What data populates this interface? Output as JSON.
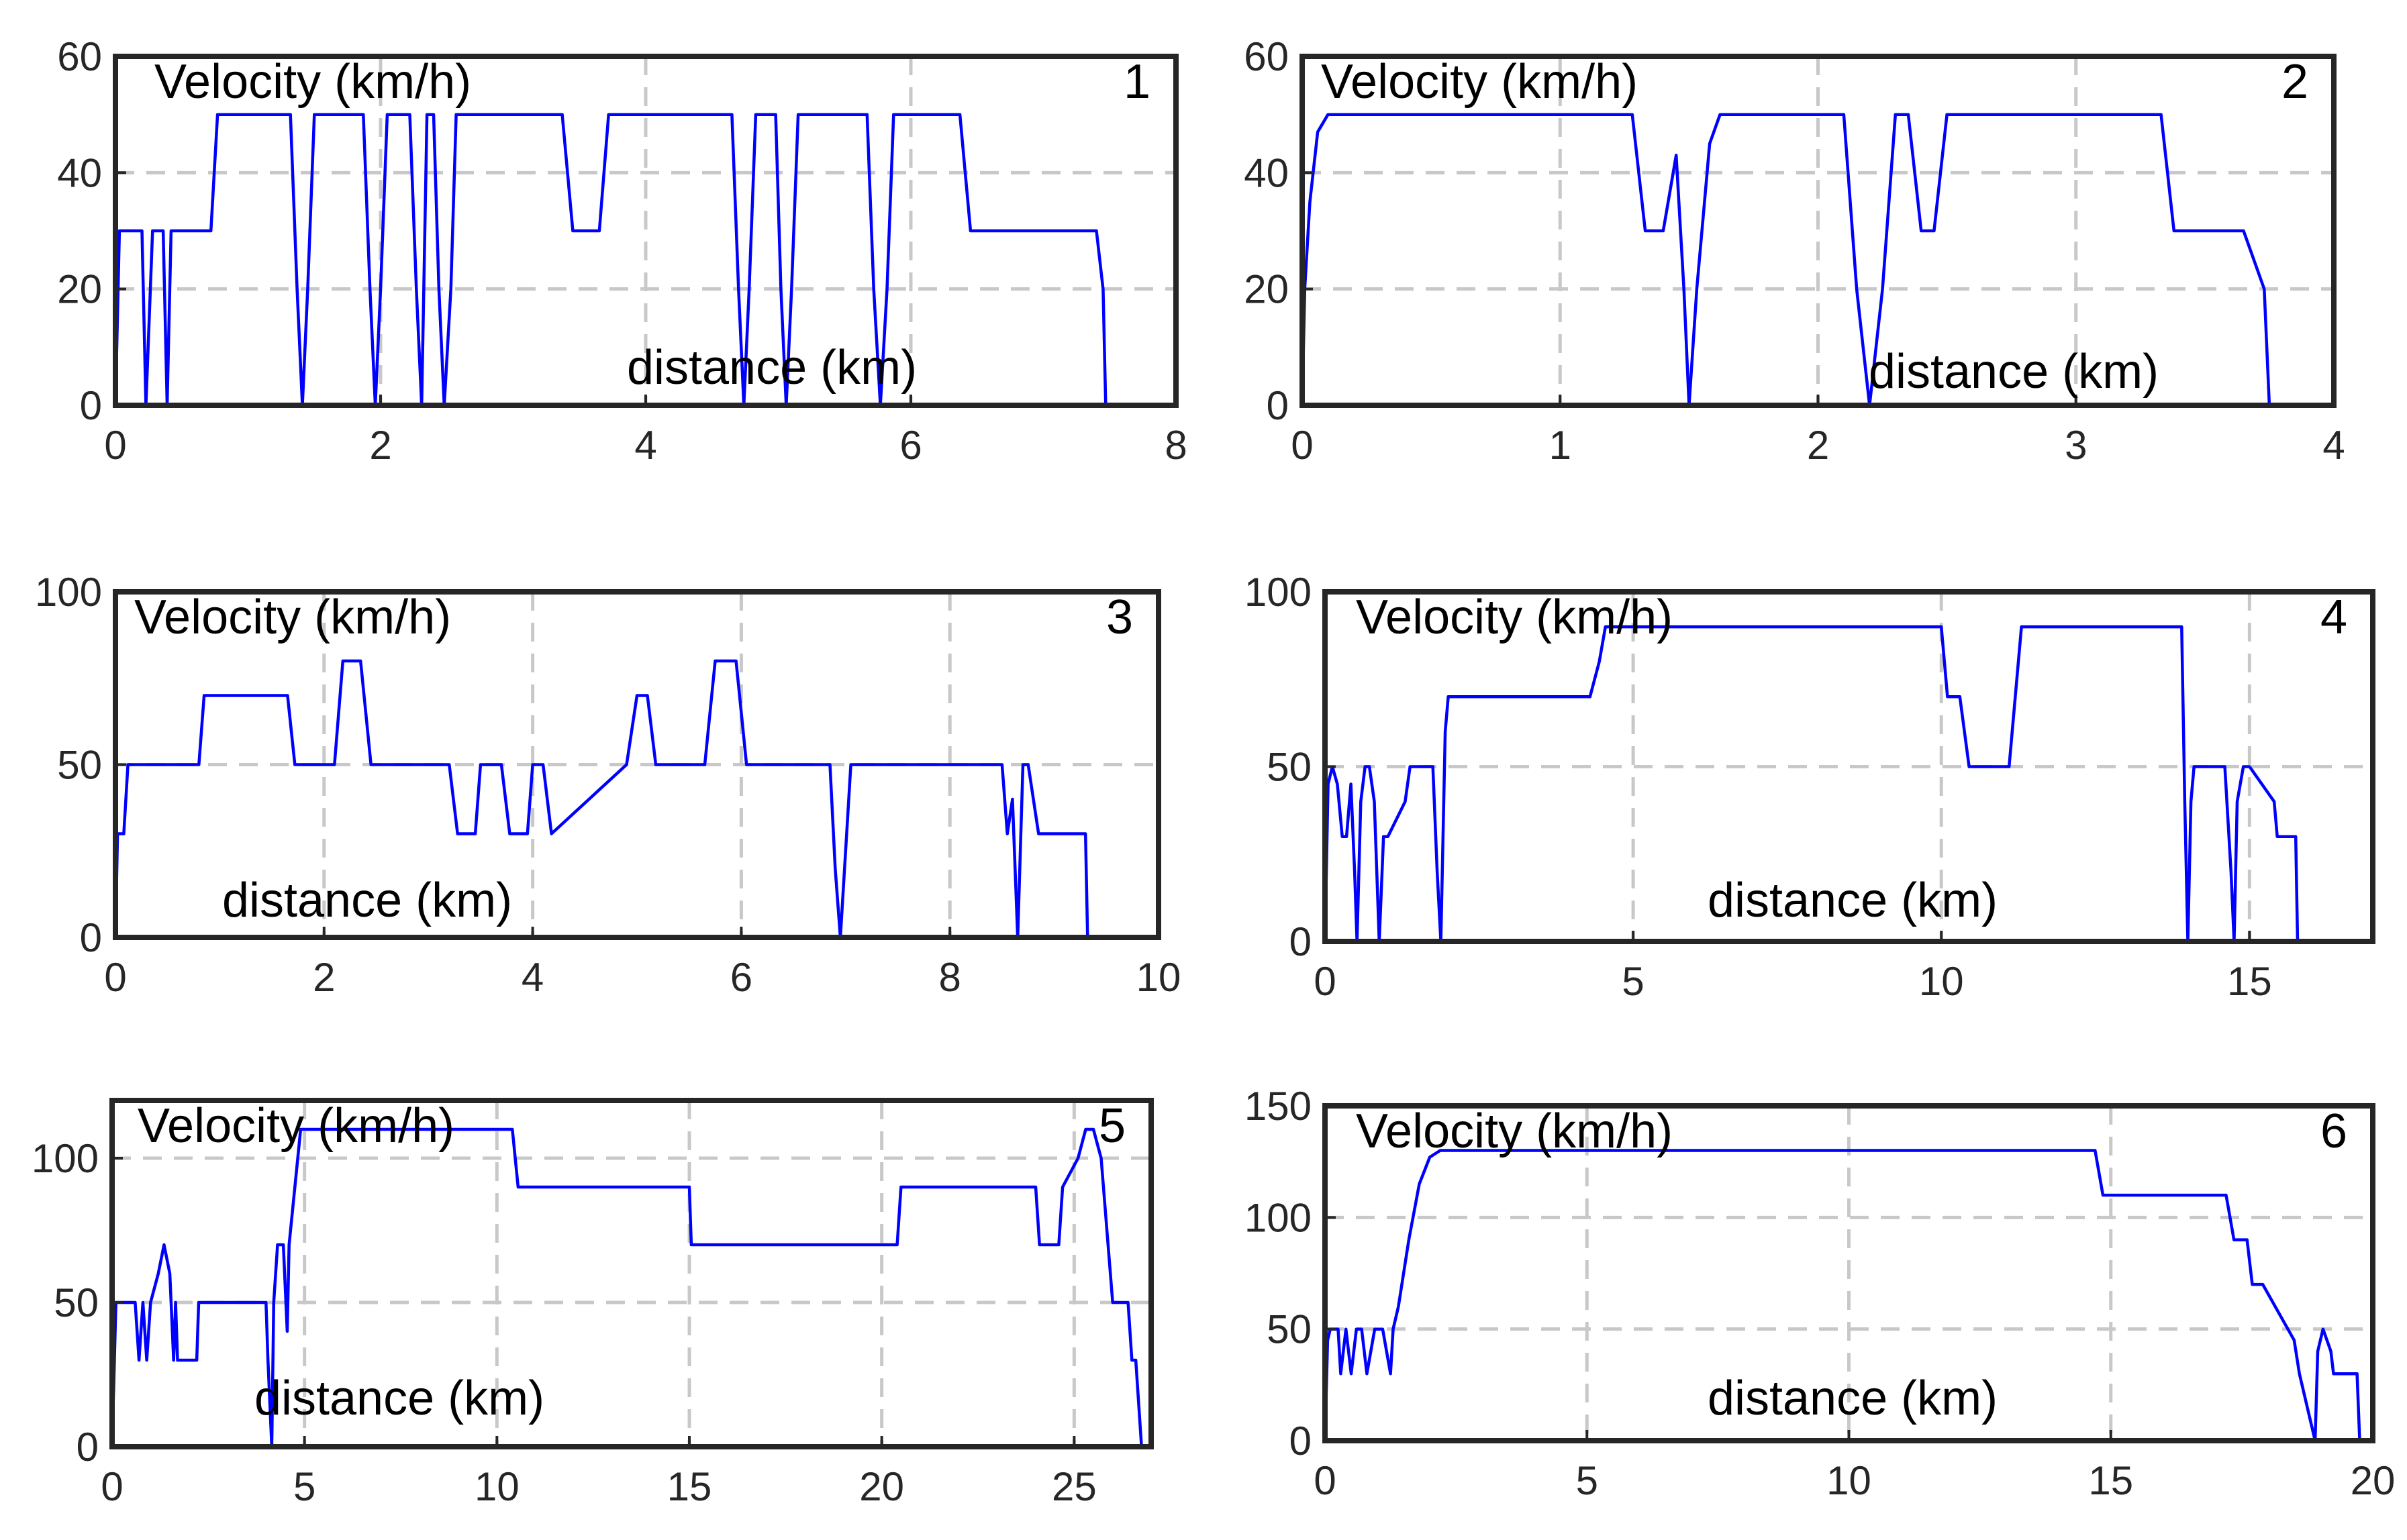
{
  "chart_data": [
    {
      "type": "line",
      "panel_number": "1",
      "ylabel": "Velocity (km/h)",
      "xlabel": "distance (km)",
      "xlim": [
        0,
        8
      ],
      "ylim": [
        0,
        60
      ],
      "xticks": [
        0,
        2,
        4,
        6,
        8
      ],
      "yticks": [
        0,
        20,
        40,
        60
      ],
      "grid": true,
      "series": [
        {
          "name": "velocity",
          "color": "#0000ff",
          "x": [
            0,
            0.03,
            0.2,
            0.23,
            0.28,
            0.36,
            0.39,
            0.42,
            0.72,
            0.77,
            1.32,
            1.37,
            1.41,
            1.45,
            1.5,
            1.87,
            1.92,
            1.96,
            2.0,
            2.05,
            2.22,
            2.27,
            2.31,
            2.35,
            2.4,
            2.44,
            2.48,
            2.53,
            2.57,
            2.62,
            3.37,
            3.45,
            3.65,
            3.72,
            4.65,
            4.7,
            4.74,
            4.78,
            4.83,
            4.98,
            5.02,
            5.06,
            5.1,
            5.15,
            5.67,
            5.72,
            5.77,
            5.82,
            5.87,
            6.37,
            6.45,
            7.4,
            7.45,
            7.47
          ],
          "y": [
            0,
            30,
            30,
            0,
            30,
            30,
            0,
            30,
            30,
            50,
            50,
            20,
            0,
            20,
            50,
            50,
            20,
            0,
            20,
            50,
            50,
            20,
            0,
            50,
            50,
            20,
            0,
            20,
            50,
            50,
            50,
            30,
            30,
            50,
            50,
            20,
            0,
            20,
            50,
            50,
            20,
            0,
            20,
            50,
            50,
            20,
            0,
            20,
            50,
            50,
            30,
            30,
            20,
            0
          ]
        }
      ]
    },
    {
      "type": "line",
      "panel_number": "2",
      "ylabel": "Velocity (km/h)",
      "xlabel": "distance (km)",
      "xlim": [
        0,
        4
      ],
      "ylim": [
        0,
        60
      ],
      "xticks": [
        0,
        1,
        2,
        3,
        4
      ],
      "yticks": [
        0,
        20,
        40,
        60
      ],
      "grid": true,
      "series": [
        {
          "name": "velocity",
          "color": "#0000ff",
          "x": [
            0,
            0.01,
            0.03,
            0.06,
            0.1,
            1.28,
            1.33,
            1.4,
            1.45,
            1.48,
            1.5,
            1.53,
            1.58,
            1.62,
            2.1,
            2.15,
            2.2,
            2.25,
            2.3,
            2.35,
            2.4,
            2.45,
            2.5,
            2.55,
            3.33,
            3.38,
            3.65,
            3.73,
            3.75
          ],
          "y": [
            0,
            20,
            35,
            47,
            50,
            50,
            30,
            30,
            43,
            20,
            0,
            20,
            45,
            50,
            50,
            20,
            0,
            20,
            50,
            50,
            30,
            30,
            50,
            50,
            50,
            30,
            30,
            20,
            0
          ]
        }
      ]
    },
    {
      "type": "line",
      "panel_number": "3",
      "ylabel": "Velocity (km/h)",
      "xlabel": "distance (km)",
      "xlim": [
        0,
        10
      ],
      "ylim": [
        0,
        100
      ],
      "xticks": [
        0,
        2,
        4,
        6,
        8,
        10
      ],
      "yticks": [
        0,
        50,
        100
      ],
      "grid": true,
      "series": [
        {
          "name": "velocity",
          "color": "#0000ff",
          "x": [
            0,
            0.02,
            0.08,
            0.12,
            0.8,
            0.85,
            1.65,
            1.72,
            2.1,
            2.18,
            2.35,
            2.45,
            3.2,
            3.28,
            3.45,
            3.5,
            3.7,
            3.78,
            3.95,
            4.0,
            4.1,
            4.18,
            4.9,
            5.0,
            5.1,
            5.18,
            5.65,
            5.75,
            5.95,
            6.05,
            6.85,
            6.9,
            6.95,
            7.05,
            8.5,
            8.55,
            8.6,
            8.65,
            8.7,
            8.75,
            8.85,
            8.9,
            9.3,
            9.32
          ],
          "y": [
            0,
            30,
            30,
            50,
            50,
            70,
            70,
            50,
            50,
            80,
            80,
            50,
            50,
            30,
            30,
            50,
            50,
            30,
            30,
            50,
            50,
            30,
            50,
            70,
            70,
            50,
            50,
            80,
            80,
            50,
            50,
            20,
            0,
            50,
            50,
            30,
            40,
            0,
            50,
            50,
            30,
            30,
            30,
            0
          ]
        }
      ]
    },
    {
      "type": "line",
      "panel_number": "4",
      "ylabel": "Velocity (km/h)",
      "xlabel": "distance (km)",
      "xlim": [
        0,
        17
      ],
      "ylim": [
        0,
        100
      ],
      "xticks": [
        0,
        5,
        10,
        15
      ],
      "yticks": [
        0,
        50,
        100
      ],
      "grid": true,
      "series": [
        {
          "name": "velocity",
          "color": "#0000ff",
          "x": [
            0,
            0.05,
            0.12,
            0.2,
            0.28,
            0.35,
            0.42,
            0.48,
            0.52,
            0.58,
            0.65,
            0.72,
            0.8,
            0.88,
            0.95,
            1.02,
            1.3,
            1.38,
            1.75,
            1.82,
            1.88,
            1.95,
            2.0,
            4.3,
            4.45,
            4.55,
            10.0,
            10.1,
            10.3,
            10.45,
            11.1,
            11.3,
            13.9,
            13.95,
            14.0,
            14.05,
            14.1,
            14.6,
            14.7,
            14.75,
            14.8,
            14.9,
            15.0,
            15.4,
            15.45,
            15.75,
            15.78
          ],
          "y": [
            0,
            45,
            50,
            45,
            30,
            30,
            45,
            20,
            0,
            40,
            50,
            50,
            40,
            0,
            30,
            30,
            40,
            50,
            50,
            20,
            0,
            60,
            70,
            70,
            80,
            90,
            90,
            70,
            70,
            50,
            50,
            90,
            90,
            40,
            0,
            40,
            50,
            50,
            20,
            0,
            40,
            50,
            50,
            40,
            30,
            30,
            0
          ]
        }
      ]
    },
    {
      "type": "line",
      "panel_number": "5",
      "ylabel": "Velocity (km/h)",
      "xlabel": "distance (km)",
      "xlim": [
        0,
        27
      ],
      "ylim": [
        0,
        120
      ],
      "xticks": [
        0,
        5,
        10,
        15,
        20,
        25
      ],
      "yticks": [
        0,
        50,
        100
      ],
      "grid": true,
      "series": [
        {
          "name": "velocity",
          "color": "#0000ff",
          "x": [
            0,
            0.1,
            0.2,
            0.6,
            0.7,
            0.8,
            0.9,
            1.0,
            1.2,
            1.35,
            1.5,
            1.6,
            1.65,
            1.7,
            2.2,
            2.25,
            4.0,
            4.05,
            4.15,
            4.2,
            4.3,
            4.45,
            4.55,
            4.6,
            4.75,
            4.9,
            5.0,
            10.4,
            10.55,
            15.0,
            15.05,
            20.4,
            20.5,
            24.0,
            24.1,
            24.6,
            24.7,
            25.1,
            25.3,
            25.5,
            25.7,
            26.0,
            26.4,
            26.5,
            26.6,
            26.75,
            26.8
          ],
          "y": [
            0,
            50,
            50,
            50,
            30,
            50,
            30,
            50,
            60,
            70,
            60,
            30,
            50,
            30,
            30,
            50,
            50,
            30,
            0,
            50,
            70,
            70,
            40,
            70,
            90,
            110,
            110,
            110,
            90,
            90,
            70,
            70,
            90,
            90,
            70,
            70,
            90,
            100,
            110,
            110,
            100,
            50,
            50,
            30,
            30,
            0,
            0
          ]
        }
      ]
    },
    {
      "type": "line",
      "panel_number": "6",
      "ylabel": "Velocity (km/h)",
      "xlabel": "distance (km)",
      "xlim": [
        0,
        20
      ],
      "ylim": [
        0,
        150
      ],
      "xticks": [
        0,
        5,
        10,
        15,
        20
      ],
      "yticks": [
        0,
        50,
        100,
        150
      ],
      "grid": true,
      "series": [
        {
          "name": "velocity",
          "color": "#0000ff",
          "x": [
            0,
            0.05,
            0.1,
            0.25,
            0.3,
            0.4,
            0.5,
            0.6,
            0.7,
            0.8,
            0.95,
            1.1,
            1.25,
            1.3,
            1.4,
            1.6,
            1.8,
            2.0,
            2.2,
            14.7,
            14.85,
            17.2,
            17.35,
            17.6,
            17.7,
            17.9,
            18.5,
            18.6,
            18.9,
            18.95,
            19.05,
            19.2,
            19.25,
            19.7,
            19.75
          ],
          "y": [
            0,
            45,
            50,
            50,
            30,
            50,
            30,
            50,
            50,
            30,
            50,
            50,
            30,
            50,
            60,
            90,
            115,
            127,
            130,
            130,
            110,
            110,
            90,
            90,
            70,
            70,
            45,
            30,
            0,
            40,
            50,
            40,
            30,
            30,
            0
          ]
        }
      ]
    }
  ]
}
